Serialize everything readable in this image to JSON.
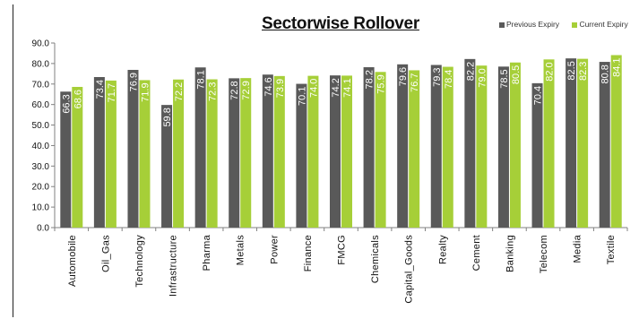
{
  "chart_data": {
    "type": "bar",
    "title": "Sectorwise Rollover",
    "categories": [
      "Automobile",
      "Oil_Gas",
      "Technology",
      "Infrastructure",
      "Pharma",
      "Metals",
      "Power",
      "Finance",
      "FMCG",
      "Chemicals",
      "Capital_Goods",
      "Realty",
      "Cement",
      "Banking",
      "Telecom",
      "Media",
      "Textile"
    ],
    "series": [
      {
        "name": "Previous Expiry",
        "color": "#595959",
        "values": [
          66.3,
          73.4,
          76.9,
          59.8,
          78.1,
          72.8,
          74.6,
          70.1,
          74.2,
          78.2,
          79.6,
          79.3,
          82.2,
          78.5,
          70.4,
          82.5,
          80.8
        ]
      },
      {
        "name": "Current Expiry",
        "color": "#a6cf38",
        "values": [
          68.6,
          71.7,
          71.9,
          72.2,
          72.3,
          72.9,
          73.9,
          74.0,
          74.1,
          75.9,
          76.7,
          78.4,
          79.0,
          80.5,
          82.0,
          82.3,
          84.1
        ]
      }
    ],
    "ylim": [
      0,
      90
    ],
    "yticks": [
      "0.0",
      "10.0",
      "20.0",
      "30.0",
      "40.0",
      "50.0",
      "60.0",
      "70.0",
      "80.0",
      "90.0"
    ],
    "legend_position": "top-right",
    "grid": false
  }
}
